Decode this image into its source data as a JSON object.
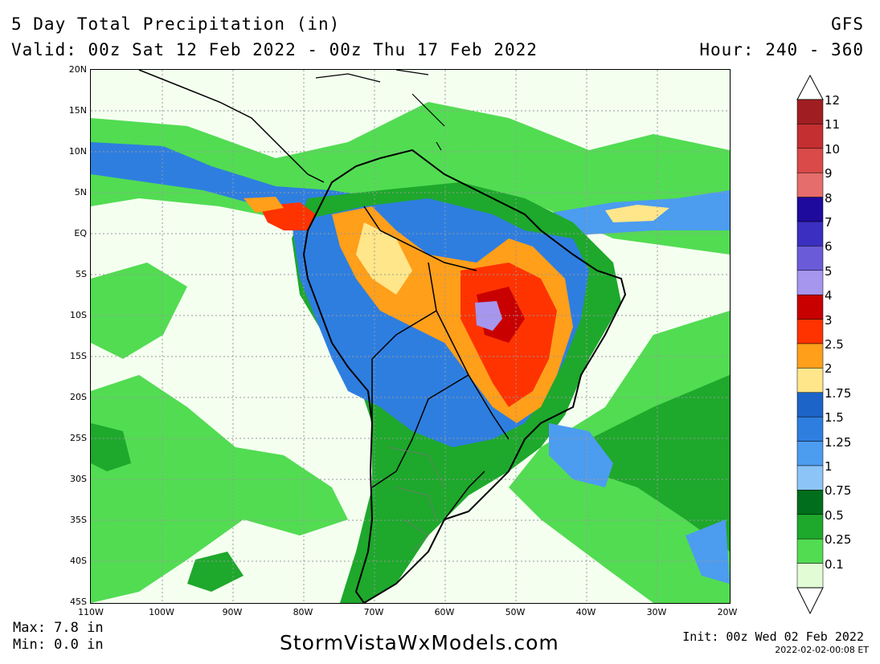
{
  "header": {
    "title": "5 Day Total Precipitation (in)",
    "model": "GFS",
    "valid": "Valid: 00z Sat 12 Feb 2022 - 00z Thu 17 Feb 2022",
    "hour": "Hour: 240 - 360"
  },
  "map": {
    "lat_labels": [
      "20N",
      "15N",
      "10N",
      "5N",
      "EQ",
      "5S",
      "10S",
      "15S",
      "20S",
      "25S",
      "30S",
      "35S",
      "40S",
      "45S"
    ],
    "lon_labels": [
      "110W",
      "100W",
      "90W",
      "80W",
      "70W",
      "60W",
      "50W",
      "40W",
      "30W",
      "20W"
    ],
    "colors": {
      "land_border": "#000000",
      "grid": "#9a9a9a",
      "ocean_light": "#f4fff0"
    }
  },
  "footer": {
    "max": "Max: 7.8 in",
    "min": "Min: 0.0 in",
    "site": "StormVistaWxModels.com",
    "init": "Init: 00z Wed 02 Feb 2022",
    "timestamp": "2022-02-02-00:08 ET"
  },
  "legend": {
    "labels": [
      "12",
      "11",
      "10",
      "9",
      "8",
      "7",
      "6",
      "5",
      "4",
      "3",
      "2.5",
      "2",
      "1.75",
      "1.5",
      "1.25",
      "1",
      "0.75",
      "0.5",
      "0.25",
      "0.1"
    ],
    "colors": [
      "#a01e22",
      "#c42f31",
      "#d94a48",
      "#e56d6b",
      "#1e0a9c",
      "#3a2fc0",
      "#6a5cd9",
      "#a796ee",
      "#c80000",
      "#ff3300",
      "#ff9f1a",
      "#ffe68a",
      "#1c64c8",
      "#2e7ee0",
      "#4c9cf0",
      "#8cc4f8",
      "#006e1c",
      "#1ea82c",
      "#52dc52",
      "#e2fcd6"
    ]
  }
}
